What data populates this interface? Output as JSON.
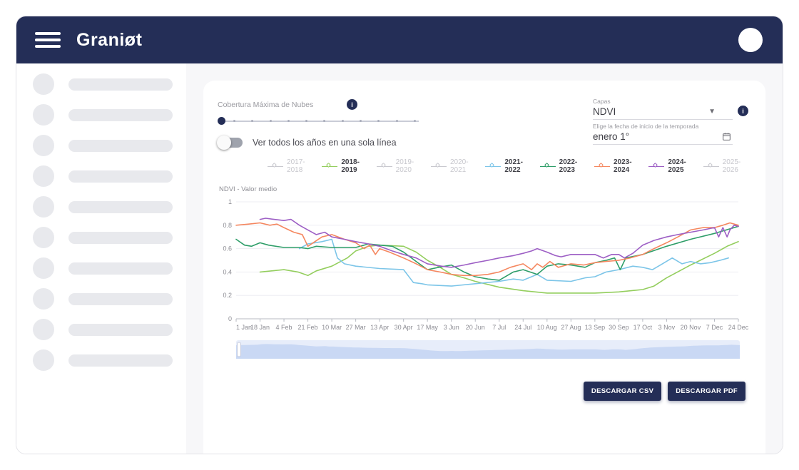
{
  "header": {
    "logo": "Graniøt"
  },
  "sidebar": {
    "skeleton_count": 10
  },
  "controls": {
    "cloud_cover_label": "Cobertura Máxima de Nubes",
    "cloud_cover_value": 0,
    "slider_tick_count": 11,
    "toggle_label": "Ver todos los años en una sola línea",
    "toggle_state": "off",
    "layers_label": "Capas",
    "layers_value": "NDVI",
    "season_label": "Elige la fecha de inicio de la temporada",
    "season_value": "enero 1°"
  },
  "legend": {
    "items": [
      {
        "label": "2017-2018",
        "active": false,
        "color": "#c9c9cf"
      },
      {
        "label": "2018-2019",
        "active": true,
        "color": "#94ce5e"
      },
      {
        "label": "2019-2020",
        "active": false,
        "color": "#c9c9cf"
      },
      {
        "label": "2020-2021",
        "active": false,
        "color": "#c9c9cf"
      },
      {
        "label": "2021-2022",
        "active": true,
        "color": "#7cc5e8"
      },
      {
        "label": "2022-2023",
        "active": true,
        "color": "#2f9e69"
      },
      {
        "label": "2023-2024",
        "active": true,
        "color": "#f5875f"
      },
      {
        "label": "2024-2025",
        "active": true,
        "color": "#9d5fc5"
      },
      {
        "label": "2025-2026",
        "active": false,
        "color": "#c9c9cf"
      }
    ]
  },
  "chart_data": {
    "type": "line",
    "title": "NDVI - Valor medio",
    "ylabel": "NDVI - Valor medio",
    "xlabel": "",
    "ylim": [
      0,
      1
    ],
    "y_ticks": [
      1,
      0.8,
      0.6,
      0.4,
      0.2,
      0
    ],
    "x_range_days": [
      1,
      358
    ],
    "x_tick_days": [
      1,
      18,
      35,
      52,
      69,
      86,
      103,
      120,
      137,
      154,
      171,
      188,
      205,
      222,
      239,
      256,
      273,
      290,
      307,
      324,
      341,
      358
    ],
    "x_tick_labels": [
      "1 Jan",
      "18 Jan",
      "4 Feb",
      "21 Feb",
      "10 Mar",
      "27 Mar",
      "13 Apr",
      "30 Apr",
      "17 May",
      "3 Jun",
      "20 Jun",
      "7 Jul",
      "24 Jul",
      "10 Aug",
      "27 Aug",
      "13 Sep",
      "30 Sep",
      "17 Oct",
      "3 Nov",
      "20 Nov",
      "7 Dec",
      "24 Dec"
    ],
    "grid": "horizontal",
    "legend_position": "top",
    "hidden_series": [
      "2017-2018",
      "2019-2020",
      "2020-2021",
      "2025-2026"
    ],
    "series": [
      {
        "name": "2018-2019",
        "color": "#94ce5e",
        "x": [
          18,
          35,
          45,
          52,
          58,
          69,
          80,
          86,
          95,
          103,
          120,
          129,
          137,
          146,
          154,
          163,
          171,
          188,
          205,
          222,
          239,
          256,
          273,
          290,
          298,
          307,
          324,
          341,
          350,
          358
        ],
        "y": [
          0.4,
          0.42,
          0.4,
          0.37,
          0.41,
          0.45,
          0.52,
          0.58,
          0.62,
          0.63,
          0.62,
          0.57,
          0.5,
          0.44,
          0.38,
          0.35,
          0.32,
          0.27,
          0.24,
          0.22,
          0.22,
          0.22,
          0.23,
          0.25,
          0.28,
          0.35,
          0.46,
          0.56,
          0.62,
          0.66
        ]
      },
      {
        "name": "2021-2022",
        "color": "#7cc5e8",
        "x": [
          46,
          52,
          62,
          69,
          73,
          78,
          86,
          103,
          120,
          127,
          133,
          137,
          154,
          171,
          188,
          198,
          205,
          215,
          222,
          239,
          249,
          256,
          264,
          273,
          283,
          290,
          297,
          304,
          311,
          318,
          324,
          331,
          338,
          345,
          351
        ],
        "y": [
          0.6,
          0.64,
          0.66,
          0.68,
          0.52,
          0.47,
          0.45,
          0.43,
          0.42,
          0.31,
          0.3,
          0.29,
          0.28,
          0.3,
          0.32,
          0.34,
          0.33,
          0.38,
          0.33,
          0.32,
          0.35,
          0.36,
          0.4,
          0.42,
          0.45,
          0.44,
          0.42,
          0.47,
          0.52,
          0.47,
          0.49,
          0.47,
          0.48,
          0.5,
          0.52
        ]
      },
      {
        "name": "2022-2023",
        "color": "#2f9e69",
        "x": [
          1,
          7,
          12,
          18,
          24,
          35,
          46,
          52,
          58,
          69,
          80,
          86,
          95,
          103,
          112,
          120,
          129,
          137,
          145,
          154,
          163,
          171,
          180,
          188,
          198,
          205,
          215,
          222,
          230,
          239,
          249,
          256,
          264,
          270,
          274,
          278,
          290,
          307,
          324,
          341,
          358
        ],
        "y": [
          0.68,
          0.63,
          0.62,
          0.65,
          0.63,
          0.61,
          0.61,
          0.6,
          0.62,
          0.61,
          0.61,
          0.61,
          0.64,
          0.63,
          0.62,
          0.57,
          0.49,
          0.42,
          0.44,
          0.46,
          0.4,
          0.36,
          0.34,
          0.33,
          0.4,
          0.42,
          0.38,
          0.45,
          0.47,
          0.46,
          0.44,
          0.48,
          0.5,
          0.52,
          0.42,
          0.52,
          0.55,
          0.62,
          0.68,
          0.73,
          0.79
        ]
      },
      {
        "name": "2023-2024",
        "color": "#f5875f",
        "x": [
          1,
          10,
          18,
          25,
          30,
          35,
          42,
          48,
          52,
          57,
          62,
          69,
          78,
          86,
          92,
          96,
          100,
          103,
          110,
          120,
          129,
          137,
          146,
          154,
          163,
          171,
          180,
          188,
          196,
          205,
          211,
          215,
          219,
          224,
          230,
          239,
          248,
          256,
          264,
          273,
          281,
          290,
          298,
          307,
          315,
          324,
          333,
          341,
          347,
          352,
          358
        ],
        "y": [
          0.8,
          0.81,
          0.82,
          0.8,
          0.81,
          0.78,
          0.74,
          0.72,
          0.62,
          0.66,
          0.7,
          0.72,
          0.68,
          0.65,
          0.6,
          0.63,
          0.55,
          0.6,
          0.57,
          0.52,
          0.47,
          0.42,
          0.4,
          0.38,
          0.37,
          0.37,
          0.38,
          0.4,
          0.44,
          0.47,
          0.42,
          0.47,
          0.44,
          0.49,
          0.44,
          0.47,
          0.46,
          0.48,
          0.49,
          0.5,
          0.52,
          0.55,
          0.6,
          0.65,
          0.7,
          0.76,
          0.78,
          0.78,
          0.8,
          0.82,
          0.8
        ]
      },
      {
        "name": "2024-2025",
        "color": "#9d5fc5",
        "x": [
          18,
          22,
          28,
          35,
          40,
          46,
          52,
          58,
          64,
          69,
          78,
          86,
          95,
          103,
          112,
          120,
          129,
          137,
          147,
          154,
          163,
          171,
          180,
          188,
          198,
          205,
          211,
          215,
          222,
          228,
          232,
          239,
          249,
          256,
          262,
          268,
          273,
          277,
          283,
          290,
          298,
          307,
          315,
          324,
          333,
          341,
          344,
          347,
          350,
          352,
          355,
          358
        ],
        "y": [
          0.85,
          0.86,
          0.85,
          0.84,
          0.85,
          0.8,
          0.76,
          0.72,
          0.74,
          0.7,
          0.68,
          0.66,
          0.64,
          0.62,
          0.58,
          0.55,
          0.52,
          0.47,
          0.45,
          0.44,
          0.46,
          0.48,
          0.5,
          0.52,
          0.54,
          0.56,
          0.58,
          0.6,
          0.57,
          0.54,
          0.53,
          0.55,
          0.55,
          0.55,
          0.52,
          0.55,
          0.55,
          0.52,
          0.56,
          0.63,
          0.67,
          0.7,
          0.72,
          0.74,
          0.76,
          0.78,
          0.7,
          0.78,
          0.7,
          0.76,
          0.8,
          0.79
        ]
      }
    ]
  },
  "buttons": {
    "csv": "DESCARGAR CSV",
    "pdf": "DESCARGAR PDF"
  },
  "colors": {
    "navy": "#242e57",
    "content_bg": "#f7f7f9",
    "skeleton": "#e8e9ed",
    "grid": "#ededf3",
    "axis": "#b7bac2",
    "brush_bg": "#e7edfa",
    "brush_fill": "#c9d8f4"
  }
}
